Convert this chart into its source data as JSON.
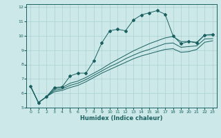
{
  "title": "",
  "xlabel": "Humidex (Indice chaleur)",
  "ylabel": "",
  "background_color": "#cce8e8",
  "grid_color": "#aad0d0",
  "line_color": "#1a6060",
  "xlim": [
    -0.5,
    23.5
  ],
  "ylim": [
    5,
    12.2
  ],
  "xticks": [
    0,
    1,
    2,
    3,
    4,
    5,
    6,
    7,
    8,
    9,
    10,
    11,
    12,
    13,
    14,
    15,
    16,
    17,
    18,
    19,
    20,
    21,
    22,
    23
  ],
  "yticks": [
    5,
    6,
    7,
    8,
    9,
    10,
    11,
    12
  ],
  "lines": [
    {
      "x": [
        0,
        1,
        2,
        3,
        4,
        5,
        6,
        7,
        8,
        9,
        10,
        11,
        12,
        13,
        14,
        15,
        16,
        17,
        18,
        19,
        20,
        21,
        22,
        23
      ],
      "y": [
        6.5,
        5.35,
        5.75,
        6.4,
        6.45,
        7.2,
        7.4,
        7.4,
        8.25,
        9.5,
        10.35,
        10.45,
        10.35,
        11.1,
        11.45,
        11.6,
        11.75,
        11.5,
        10.0,
        9.45,
        9.6,
        9.5,
        10.05,
        10.1
      ],
      "has_markers": true
    },
    {
      "x": [
        0,
        1,
        2,
        3,
        4,
        5,
        6,
        7,
        8,
        9,
        10,
        11,
        12,
        13,
        14,
        15,
        16,
        17,
        18,
        19,
        20,
        21,
        22,
        23
      ],
      "y": [
        6.5,
        5.35,
        5.75,
        6.3,
        6.4,
        6.7,
        6.85,
        7.1,
        7.4,
        7.7,
        8.05,
        8.35,
        8.65,
        8.95,
        9.2,
        9.45,
        9.65,
        9.85,
        9.95,
        9.6,
        9.6,
        9.55,
        10.05,
        10.05
      ],
      "has_markers": false
    },
    {
      "x": [
        0,
        1,
        2,
        3,
        4,
        5,
        6,
        7,
        8,
        9,
        10,
        11,
        12,
        13,
        14,
        15,
        16,
        17,
        18,
        19,
        20,
        21,
        22,
        23
      ],
      "y": [
        6.5,
        5.35,
        5.75,
        6.2,
        6.3,
        6.55,
        6.7,
        6.95,
        7.25,
        7.55,
        7.85,
        8.1,
        8.4,
        8.65,
        8.88,
        9.05,
        9.25,
        9.45,
        9.5,
        9.2,
        9.25,
        9.3,
        9.78,
        9.8
      ],
      "has_markers": false
    },
    {
      "x": [
        0,
        1,
        2,
        3,
        4,
        5,
        6,
        7,
        8,
        9,
        10,
        11,
        12,
        13,
        14,
        15,
        16,
        17,
        18,
        19,
        20,
        21,
        22,
        23
      ],
      "y": [
        6.5,
        5.35,
        5.75,
        6.1,
        6.2,
        6.4,
        6.55,
        6.8,
        7.1,
        7.4,
        7.65,
        7.9,
        8.15,
        8.4,
        8.6,
        8.75,
        8.9,
        9.05,
        9.1,
        8.85,
        8.9,
        9.05,
        9.55,
        9.65
      ],
      "has_markers": false
    }
  ]
}
